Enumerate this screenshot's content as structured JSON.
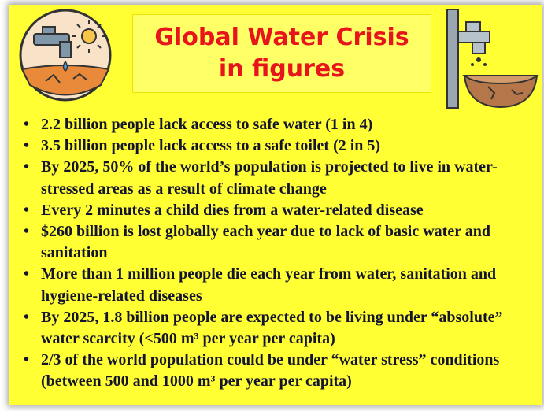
{
  "header": {
    "title_lines": [
      "Global Water Crisis",
      "in figures"
    ]
  },
  "bullets": [
    "2.2 billion people lack access to safe water (1 in 4)",
    "3.5 billion people lack access to a safe toilet (2 in 5)",
    "By 2025, 50% of the world’s population is projected to live in water-stressed areas as a result of climate change",
    "Every 2 minutes a child dies from a water-related disease",
    "$260 billion is lost globally each year due to lack of basic water and sanitation",
    "More than 1 million people die each year from water, sanitation and hygiene-related diseases",
    "By 2025, 1.8 billion people are expected to be living under “absolute” water scarcity (<500 m³ per year per capita)",
    "2/3 of the world population could be under “water stress” conditions (between 500 and 1000 m³ per year per capita)"
  ]
}
